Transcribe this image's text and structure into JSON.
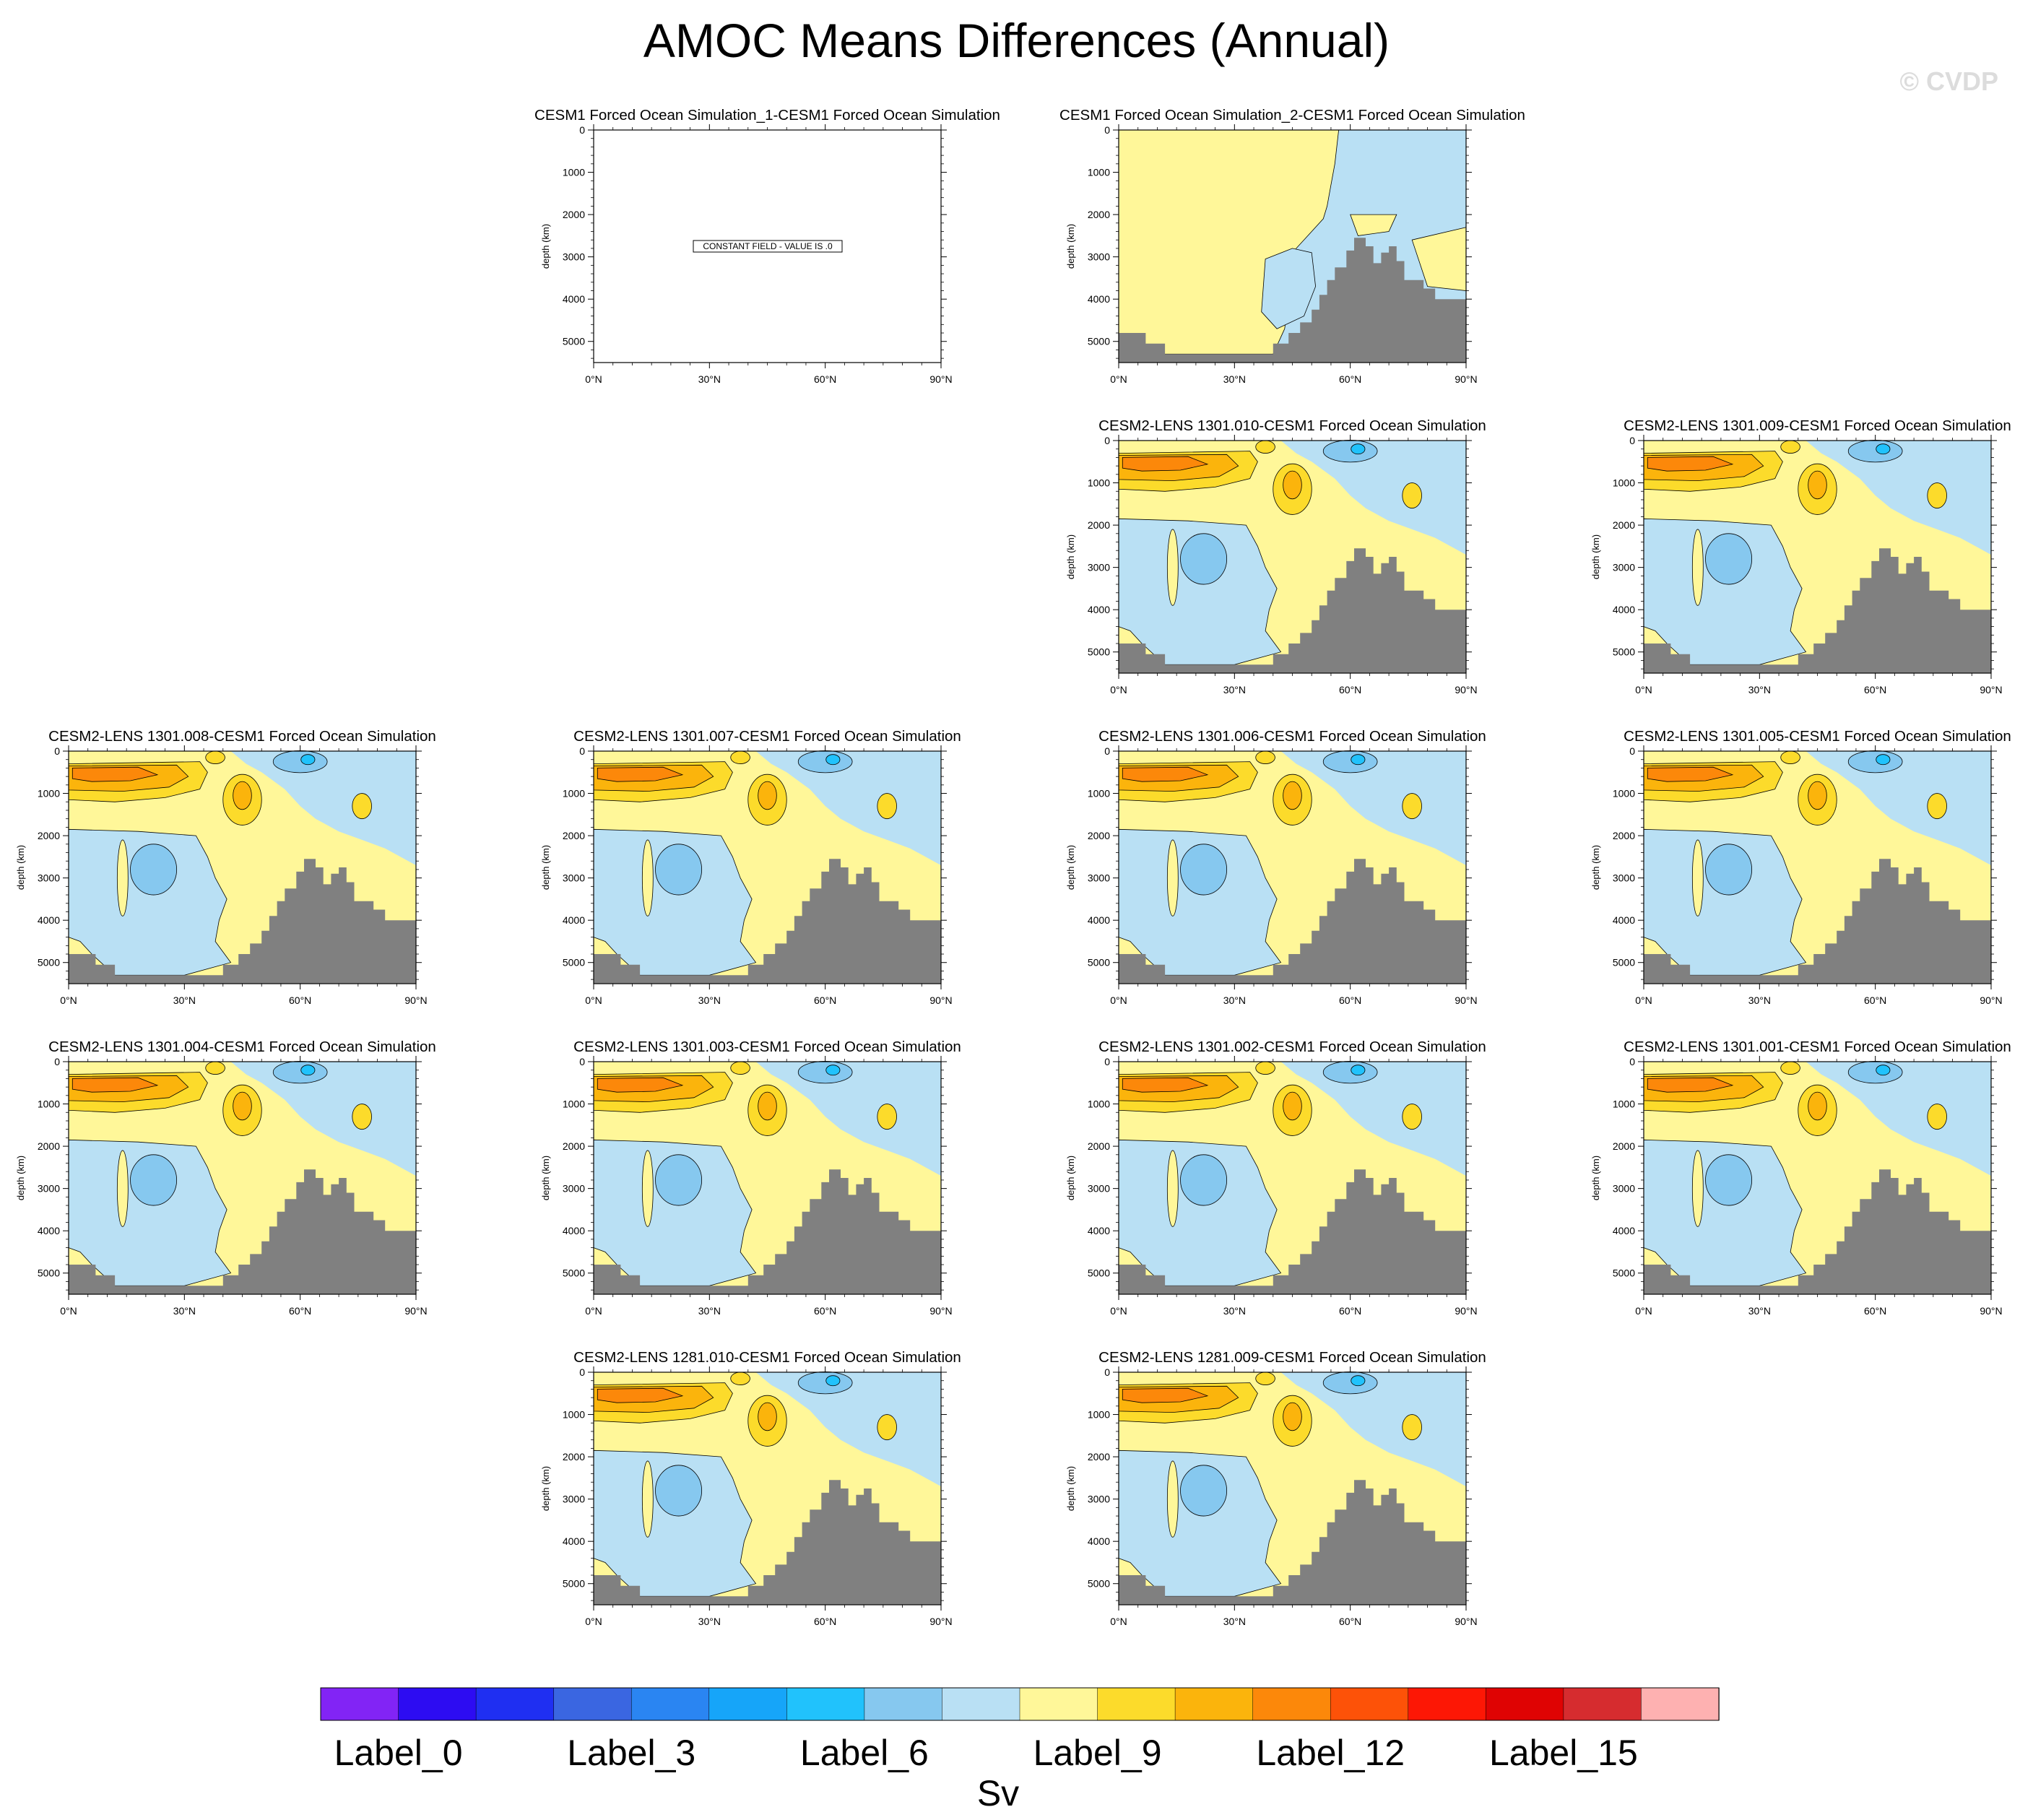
{
  "title": "AMOC Means Differences (Annual)",
  "watermark": "© CVDP",
  "chart_data": {
    "type": "contour-panels",
    "title": "AMOC Means Differences (Annual)",
    "xlabel": "",
    "ylabel": "depth (km)",
    "xlim": [
      0,
      90
    ],
    "ylim": [
      5500,
      0
    ],
    "x_ticks": [
      "0°N",
      "30°N",
      "60°N",
      "90°N"
    ],
    "y_ticks": [
      0,
      1000,
      2000,
      3000,
      4000,
      5000
    ],
    "panels": [
      {
        "title": "CESM1 Forced Ocean Simulation_1-CESM1 Forced Ocean Simulation",
        "kind": "constant",
        "note": "CONSTANT FIELD - VALUE IS .0"
      },
      {
        "title": "CESM1 Forced Ocean Simulation_2-CESM1 Forced Ocean Simulation",
        "kind": "weak"
      },
      {
        "title": "CESM2-LENS 1301.010-CESM1 Forced Ocean Simulation",
        "kind": "full"
      },
      {
        "title": "CESM2-LENS 1301.009-CESM1 Forced Ocean Simulation",
        "kind": "full"
      },
      {
        "title": "CESM2-LENS 1301.008-CESM1 Forced Ocean Simulation",
        "kind": "full"
      },
      {
        "title": "CESM2-LENS 1301.007-CESM1 Forced Ocean Simulation",
        "kind": "full"
      },
      {
        "title": "CESM2-LENS 1301.006-CESM1 Forced Ocean Simulation",
        "kind": "full"
      },
      {
        "title": "CESM2-LENS 1301.005-CESM1 Forced Ocean Simulation",
        "kind": "full"
      },
      {
        "title": "CESM2-LENS 1301.004-CESM1 Forced Ocean Simulation",
        "kind": "full"
      },
      {
        "title": "CESM2-LENS 1301.003-CESM1 Forced Ocean Simulation",
        "kind": "full"
      },
      {
        "title": "CESM2-LENS 1301.002-CESM1 Forced Ocean Simulation",
        "kind": "full"
      },
      {
        "title": "CESM2-LENS 1301.001-CESM1 Forced Ocean Simulation",
        "kind": "full"
      },
      {
        "title": "CESM2-LENS 1281.010-CESM1 Forced Ocean Simulation",
        "kind": "full"
      },
      {
        "title": "CESM2-LENS 1281.009-CESM1 Forced Ocean Simulation",
        "kind": "full"
      }
    ],
    "colorbar": {
      "colors": [
        "#8224f5",
        "#2d0cf2",
        "#1f2ff2",
        "#3a66e1",
        "#2a85f2",
        "#16a5f9",
        "#21c2fc",
        "#86c8ef",
        "#b9e0f4",
        "#fff799",
        "#fcdb2b",
        "#fbb40c",
        "#fc880a",
        "#fd5208",
        "#fd1705",
        "#df0303",
        "#d62c2f",
        "#feb1b1"
      ],
      "labels": [
        {
          "index": 0,
          "text": "Label_0"
        },
        {
          "index": 3,
          "text": "Label_3"
        },
        {
          "index": 6,
          "text": "Label_6"
        },
        {
          "index": 9,
          "text": "Label_9"
        },
        {
          "index": 12,
          "text": "Label_12"
        },
        {
          "index": 15,
          "text": "Label_15"
        }
      ],
      "unit": "Sv"
    },
    "land_color": "#808080"
  }
}
